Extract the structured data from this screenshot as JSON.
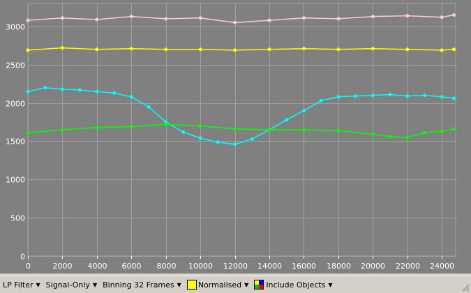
{
  "chart_data": {
    "type": "scatter",
    "style": "dot-line",
    "xlim": [
      0,
      24800
    ],
    "ylim": [
      0,
      3300
    ],
    "x_ticks": [
      0,
      2000,
      4000,
      6000,
      8000,
      10000,
      12000,
      14000,
      16000,
      18000,
      20000,
      22000,
      24000
    ],
    "y_ticks": [
      0,
      500,
      1000,
      1500,
      2000,
      2500,
      3000
    ],
    "grid": true,
    "background": "#808080",
    "grid_color": "#a0a0a0",
    "series": [
      {
        "color": "#ffcccc",
        "x": [
          0,
          2000,
          4000,
          6000,
          8000,
          10000,
          12000,
          14000,
          16000,
          18000,
          20000,
          22000,
          24000,
          24700
        ],
        "y": [
          3080,
          3110,
          3090,
          3130,
          3100,
          3110,
          3050,
          3080,
          3110,
          3100,
          3130,
          3140,
          3120,
          3150
        ]
      },
      {
        "color": "#ffff00",
        "x": [
          0,
          2000,
          4000,
          6000,
          8000,
          10000,
          12000,
          14000,
          16000,
          18000,
          20000,
          22000,
          24000,
          24700
        ],
        "y": [
          2690,
          2720,
          2700,
          2710,
          2700,
          2700,
          2690,
          2700,
          2710,
          2700,
          2710,
          2700,
          2690,
          2700
        ]
      },
      {
        "color": "#00ffff",
        "x": [
          0,
          1000,
          2000,
          3000,
          4000,
          5000,
          6000,
          7000,
          8000,
          9000,
          10000,
          11000,
          12000,
          13000,
          14000,
          15000,
          16000,
          17000,
          18000,
          19000,
          20000,
          21000,
          22000,
          23000,
          24000,
          24700
        ],
        "y": [
          2150,
          2200,
          2180,
          2170,
          2150,
          2130,
          2080,
          1950,
          1750,
          1620,
          1540,
          1490,
          1460,
          1530,
          1650,
          1780,
          1900,
          2030,
          2080,
          2090,
          2100,
          2110,
          2090,
          2100,
          2080,
          2060
        ]
      },
      {
        "color": "#00ff00",
        "x": [
          0,
          2000,
          4000,
          6000,
          8000,
          10000,
          12000,
          14000,
          16000,
          18000,
          20000,
          21000,
          22000,
          23000,
          24000,
          24700
        ],
        "y": [
          1610,
          1650,
          1680,
          1690,
          1720,
          1700,
          1660,
          1650,
          1650,
          1640,
          1590,
          1560,
          1550,
          1610,
          1630,
          1660
        ]
      }
    ]
  },
  "toolbar": {
    "lp_filter": "LP Filter",
    "signal_only": "Signal-Only",
    "binning": "Binning 32 Frames",
    "normalised": "Normalised",
    "include_objects": "Include Objects",
    "dropdown_arrow": "▼"
  }
}
